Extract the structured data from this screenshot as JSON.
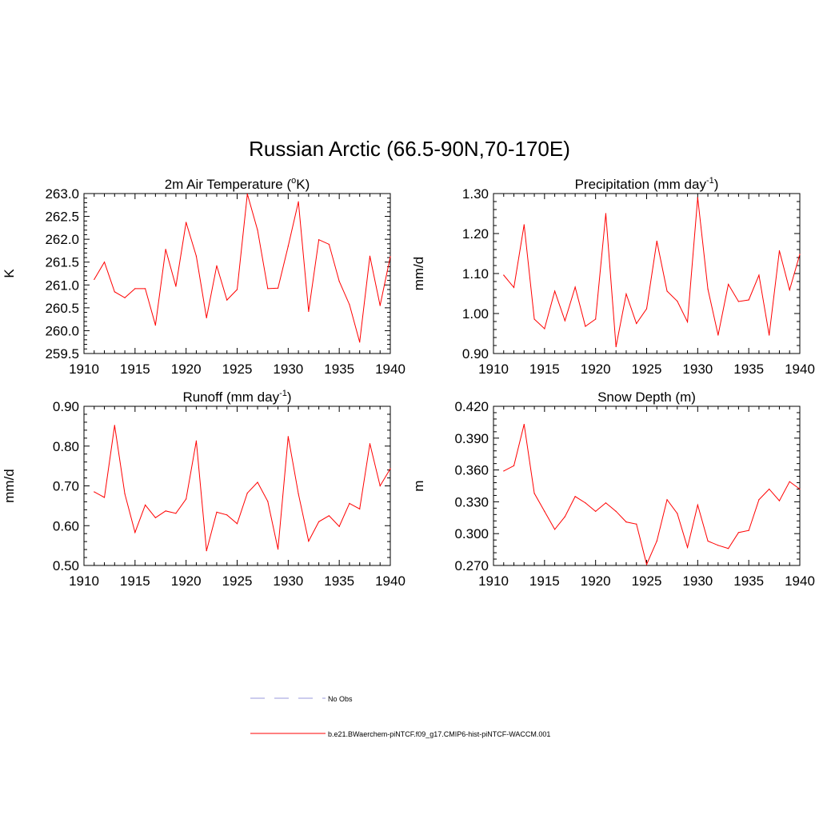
{
  "title": "Russian Arctic (66.5-90N,70-170E)",
  "colors": {
    "model_line": "#ff0000",
    "obs_line": "#9999dd",
    "axis": "#000000"
  },
  "legend": {
    "obs_label": "No Obs",
    "model_label": "b.e21.BWaerchem-piNTCF.f09_g17.CMIP6-hist-piNTCF-WACCM.001"
  },
  "chart_data": [
    {
      "type": "line",
      "title": "2m Air Temperature (",
      "title_sup": "o",
      "title_after": "K)",
      "ylabel": "K",
      "xlim": [
        1910,
        1940
      ],
      "ylim": [
        259.5,
        263.0
      ],
      "xticks": [
        1910,
        1915,
        1920,
        1925,
        1930,
        1935,
        1940
      ],
      "yticks": [
        "259.5",
        "260.0",
        "260.5",
        "261.0",
        "261.5",
        "262.0",
        "262.5",
        "263.0"
      ],
      "ytick_values": [
        259.5,
        260.0,
        260.5,
        261.0,
        261.5,
        262.0,
        262.5,
        263.0
      ],
      "x": [
        1911,
        1912,
        1913,
        1914,
        1915,
        1916,
        1917,
        1918,
        1919,
        1920,
        1921,
        1922,
        1923,
        1924,
        1925,
        1926,
        1927,
        1928,
        1929,
        1930,
        1931,
        1932,
        1933,
        1934,
        1935,
        1936,
        1937,
        1938,
        1939,
        1940
      ],
      "series": [
        {
          "values": [
            261.12,
            261.5,
            260.85,
            260.72,
            260.92,
            260.92,
            260.12,
            261.78,
            260.97,
            262.37,
            261.63,
            260.28,
            261.42,
            260.67,
            260.9,
            262.99,
            262.2,
            260.92,
            260.93,
            261.85,
            262.82,
            260.42,
            261.99,
            261.89,
            261.08,
            260.57,
            259.75,
            261.63,
            260.55,
            261.62
          ]
        }
      ]
    },
    {
      "type": "line",
      "title": "Precipitation (mm day",
      "title_sup": "-1",
      "title_after": ")",
      "ylabel": "mm/d",
      "xlim": [
        1910,
        1940
      ],
      "ylim": [
        0.9,
        1.3
      ],
      "xticks": [
        1910,
        1915,
        1920,
        1925,
        1930,
        1935,
        1940
      ],
      "yticks": [
        "0.90",
        "1.00",
        "1.10",
        "1.20",
        "1.30"
      ],
      "ytick_values": [
        0.9,
        1.0,
        1.1,
        1.2,
        1.3
      ],
      "x": [
        1911,
        1912,
        1913,
        1914,
        1915,
        1916,
        1917,
        1918,
        1919,
        1920,
        1921,
        1922,
        1923,
        1924,
        1925,
        1926,
        1927,
        1928,
        1929,
        1930,
        1931,
        1932,
        1933,
        1934,
        1935,
        1936,
        1937,
        1938,
        1939,
        1940
      ],
      "series": [
        {
          "values": [
            1.096,
            1.065,
            1.222,
            0.986,
            0.962,
            1.056,
            0.982,
            1.066,
            0.968,
            0.986,
            1.25,
            0.917,
            1.049,
            0.975,
            1.012,
            1.181,
            1.056,
            1.031,
            0.979,
            1.29,
            1.061,
            0.946,
            1.073,
            1.03,
            1.034,
            1.096,
            0.946,
            1.157,
            1.059,
            1.148
          ]
        }
      ]
    },
    {
      "type": "line",
      "title": "Runoff (mm day",
      "title_sup": "-1",
      "title_after": ")",
      "ylabel": "mm/d",
      "xlim": [
        1910,
        1940
      ],
      "ylim": [
        0.5,
        0.9
      ],
      "xticks": [
        1910,
        1915,
        1920,
        1925,
        1930,
        1935,
        1940
      ],
      "yticks": [
        "0.50",
        "0.60",
        "0.70",
        "0.80",
        "0.90"
      ],
      "ytick_values": [
        0.5,
        0.6,
        0.7,
        0.8,
        0.9
      ],
      "x": [
        1911,
        1912,
        1913,
        1914,
        1915,
        1916,
        1917,
        1918,
        1919,
        1920,
        1921,
        1922,
        1923,
        1924,
        1925,
        1926,
        1927,
        1928,
        1929,
        1930,
        1931,
        1932,
        1933,
        1934,
        1935,
        1936,
        1937,
        1938,
        1939,
        1940
      ],
      "series": [
        {
          "values": [
            0.685,
            0.671,
            0.852,
            0.68,
            0.583,
            0.652,
            0.62,
            0.637,
            0.631,
            0.667,
            0.813,
            0.537,
            0.634,
            0.627,
            0.605,
            0.682,
            0.709,
            0.661,
            0.541,
            0.824,
            0.68,
            0.561,
            0.61,
            0.625,
            0.598,
            0.656,
            0.642,
            0.806,
            0.7,
            0.743
          ]
        }
      ]
    },
    {
      "type": "line",
      "title": "Snow Depth (m)",
      "title_sup": "",
      "title_after": "",
      "ylabel": "m",
      "xlim": [
        1910,
        1940
      ],
      "ylim": [
        0.27,
        0.42
      ],
      "xticks": [
        1910,
        1915,
        1920,
        1925,
        1930,
        1935,
        1940
      ],
      "yticks": [
        "0.270",
        "0.300",
        "0.330",
        "0.360",
        "0.390",
        "0.420"
      ],
      "ytick_values": [
        0.27,
        0.3,
        0.33,
        0.36,
        0.39,
        0.42
      ],
      "x": [
        1911,
        1912,
        1913,
        1914,
        1915,
        1916,
        1917,
        1918,
        1919,
        1920,
        1921,
        1922,
        1923,
        1924,
        1925,
        1926,
        1927,
        1928,
        1929,
        1930,
        1931,
        1932,
        1933,
        1934,
        1935,
        1936,
        1937,
        1938,
        1939,
        1940
      ],
      "series": [
        {
          "values": [
            0.359,
            0.364,
            0.403,
            0.338,
            0.321,
            0.304,
            0.316,
            0.335,
            0.329,
            0.321,
            0.329,
            0.321,
            0.311,
            0.309,
            0.271,
            0.293,
            0.332,
            0.319,
            0.287,
            0.327,
            0.293,
            0.289,
            0.286,
            0.301,
            0.303,
            0.332,
            0.342,
            0.331,
            0.349,
            0.342
          ]
        }
      ]
    }
  ]
}
